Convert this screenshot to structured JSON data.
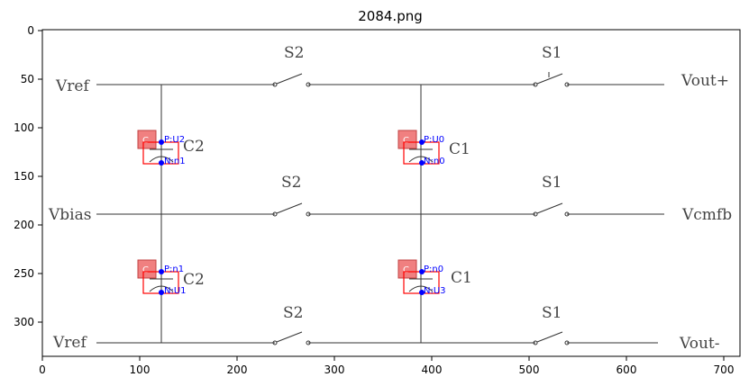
{
  "figure": {
    "title": "2084.png"
  },
  "axes": {
    "x_ticks": [
      "0",
      "100",
      "200",
      "300",
      "400",
      "500",
      "600",
      "700"
    ],
    "y_ticks": [
      "0",
      "50",
      "100",
      "150",
      "200",
      "250",
      "300"
    ]
  },
  "schematic": {
    "nets": {
      "vref_top": "Vref",
      "vout_plus": "Vout+",
      "vbias": "Vbias",
      "vcmfb": "Vcmfb",
      "vref_bottom": "Vref",
      "vout_minus": "Vout-"
    },
    "switches": {
      "top_s2": "S2",
      "top_s1": "S1",
      "mid_s2": "S2",
      "mid_s1": "S1",
      "bot_s2": "S2",
      "bot_s1": "S1"
    },
    "capacitors": {
      "top_left": "C2",
      "top_right": "C1",
      "bottom_left": "C2",
      "bottom_right": "C1"
    }
  },
  "annotations": {
    "badge_label": "C",
    "top_left_p": "P:U2",
    "top_left_n": "N:n1",
    "top_right_p": "P:U0",
    "top_right_n": "N:n0",
    "bottom_left_p": "P:n1",
    "bottom_left_n": "N:U1",
    "bottom_right_p": "P:n0",
    "bottom_right_n": "N:U3"
  },
  "colors": {
    "wire": "#333333",
    "box": "#ff0000",
    "badge_fill": "#f08080",
    "pin": "#0000ff"
  }
}
